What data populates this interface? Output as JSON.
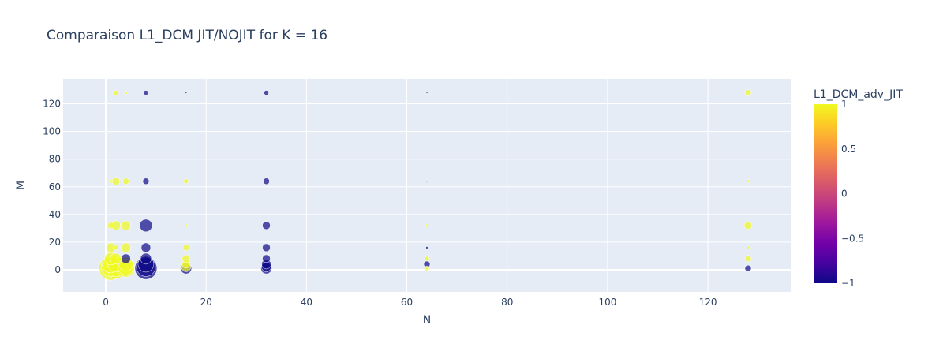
{
  "chart_data": {
    "type": "scatter",
    "title": "Comparaison L1_DCM JIT/NOJIT for K  = 16",
    "xlabel": "N",
    "ylabel": "M",
    "xlim": [
      -8.5,
      136.5
    ],
    "ylim": [
      -16,
      138
    ],
    "xticks": [
      0,
      20,
      40,
      60,
      80,
      100,
      120
    ],
    "yticks": [
      0,
      20,
      40,
      60,
      80,
      100,
      120
    ],
    "grid": true,
    "colorbar": {
      "title": "L1_DCM_adv_JIT",
      "range": [
        -1,
        1
      ],
      "ticks": [
        {
          "value": 1,
          "label": "1"
        },
        {
          "value": 0.5,
          "label": "0.5"
        },
        {
          "value": 0,
          "label": "0"
        },
        {
          "value": -0.5,
          "label": "−0.5"
        },
        {
          "value": -1,
          "label": "−1"
        }
      ],
      "colors": [
        "#0d0887",
        "#46039f",
        "#7201a8",
        "#9c179e",
        "#bd3786",
        "#d8576b",
        "#ed7953",
        "#fb9f3a",
        "#fdca26",
        "#f0f921"
      ]
    },
    "plot_bg": "#e5ecf6",
    "points": [
      {
        "x": 1,
        "y": 1,
        "c": 1,
        "s": 15
      },
      {
        "x": 1,
        "y": 2,
        "c": 1,
        "s": 12
      },
      {
        "x": 1,
        "y": 4,
        "c": 1,
        "s": 11
      },
      {
        "x": 1,
        "y": 8,
        "c": 1,
        "s": 8
      },
      {
        "x": 1,
        "y": 16,
        "c": 1,
        "s": 6
      },
      {
        "x": 1,
        "y": 32,
        "c": 1,
        "s": 4
      },
      {
        "x": 1,
        "y": 64,
        "c": 1,
        "s": 2
      },
      {
        "x": 2,
        "y": 1,
        "c": 1,
        "s": 13
      },
      {
        "x": 2,
        "y": 2,
        "c": 1,
        "s": 12
      },
      {
        "x": 2,
        "y": 4,
        "c": 1,
        "s": 10
      },
      {
        "x": 2,
        "y": 8,
        "c": 1,
        "s": 7
      },
      {
        "x": 2,
        "y": 16,
        "c": 1,
        "s": 3
      },
      {
        "x": 2,
        "y": 32,
        "c": 1,
        "s": 6
      },
      {
        "x": 2,
        "y": 64,
        "c": 1,
        "s": 5
      },
      {
        "x": 2,
        "y": 128,
        "c": 1,
        "s": 3
      },
      {
        "x": 4,
        "y": 1,
        "c": 1,
        "s": 11
      },
      {
        "x": 4,
        "y": 2,
        "c": 1,
        "s": 10
      },
      {
        "x": 4,
        "y": 4,
        "c": 1,
        "s": 9
      },
      {
        "x": 4,
        "y": 8,
        "c": -1,
        "s": 6
      },
      {
        "x": 4,
        "y": 16,
        "c": 1,
        "s": 6
      },
      {
        "x": 4,
        "y": 32,
        "c": 1,
        "s": 6
      },
      {
        "x": 4,
        "y": 64,
        "c": 1,
        "s": 4
      },
      {
        "x": 4,
        "y": 128,
        "c": 1,
        "s": 2
      },
      {
        "x": 8,
        "y": 1,
        "c": -1,
        "s": 14
      },
      {
        "x": 8,
        "y": 2,
        "c": -1,
        "s": 12
      },
      {
        "x": 8,
        "y": 4,
        "c": -1,
        "s": 10
      },
      {
        "x": 8,
        "y": 8,
        "c": -1,
        "s": 7
      },
      {
        "x": 8,
        "y": 16,
        "c": -1,
        "s": 6
      },
      {
        "x": 8,
        "y": 32,
        "c": -1,
        "s": 8
      },
      {
        "x": 8,
        "y": 64,
        "c": -1,
        "s": 4
      },
      {
        "x": 8,
        "y": 128,
        "c": -1,
        "s": 3
      },
      {
        "x": 16,
        "y": 1,
        "c": -1,
        "s": 7
      },
      {
        "x": 16,
        "y": 2,
        "c": 1,
        "s": 6
      },
      {
        "x": 16,
        "y": 4,
        "c": 1,
        "s": 5
      },
      {
        "x": 16,
        "y": 8,
        "c": 1,
        "s": 5
      },
      {
        "x": 16,
        "y": 16,
        "c": 1,
        "s": 4
      },
      {
        "x": 16,
        "y": 32,
        "c": 1,
        "s": 2
      },
      {
        "x": 16,
        "y": 64,
        "c": 1,
        "s": 3
      },
      {
        "x": 16,
        "y": 128,
        "c": -1,
        "s": 1
      },
      {
        "x": 32,
        "y": 1,
        "c": -1,
        "s": 7
      },
      {
        "x": 32,
        "y": 2,
        "c": -1,
        "s": 6
      },
      {
        "x": 32,
        "y": 4,
        "c": -1,
        "s": 6
      },
      {
        "x": 32,
        "y": 8,
        "c": -1,
        "s": 5
      },
      {
        "x": 32,
        "y": 16,
        "c": -1,
        "s": 5
      },
      {
        "x": 32,
        "y": 32,
        "c": -1,
        "s": 5
      },
      {
        "x": 32,
        "y": 64,
        "c": -1,
        "s": 4
      },
      {
        "x": 32,
        "y": 128,
        "c": -1,
        "s": 3
      },
      {
        "x": 64,
        "y": 1,
        "c": 1,
        "s": 3
      },
      {
        "x": 64,
        "y": 4,
        "c": -1,
        "s": 4
      },
      {
        "x": 64,
        "y": 8,
        "c": 1,
        "s": 3
      },
      {
        "x": 64,
        "y": 16,
        "c": -1,
        "s": 1.5
      },
      {
        "x": 64,
        "y": 32,
        "c": 1,
        "s": 2
      },
      {
        "x": 64,
        "y": 64,
        "c": -1,
        "s": 1
      },
      {
        "x": 64,
        "y": 128,
        "c": -1,
        "s": 1
      },
      {
        "x": 128,
        "y": 1,
        "c": -1,
        "s": 4
      },
      {
        "x": 128,
        "y": 8,
        "c": 1,
        "s": 4
      },
      {
        "x": 128,
        "y": 16,
        "c": 1,
        "s": 2
      },
      {
        "x": 128,
        "y": 32,
        "c": 1,
        "s": 5
      },
      {
        "x": 128,
        "y": 64,
        "c": 1,
        "s": 2
      },
      {
        "x": 128,
        "y": 128,
        "c": 1,
        "s": 4
      }
    ]
  }
}
